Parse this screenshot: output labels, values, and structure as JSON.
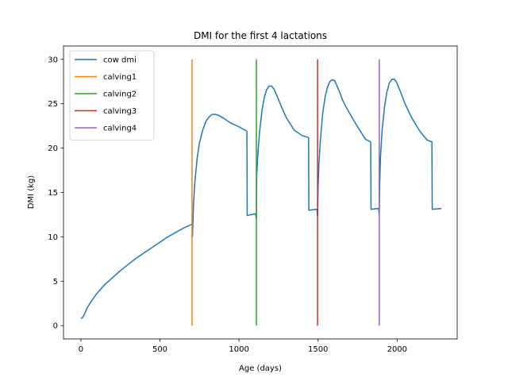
{
  "chart_data": {
    "type": "line",
    "title": "DMI for the first 4 lactations",
    "xlabel": "Age (days)",
    "ylabel": "DMI (kg)",
    "xlim": [
      -110,
      2380
    ],
    "ylim": [
      -1.5,
      31.5
    ],
    "xticks": [
      0,
      500,
      1000,
      1500,
      2000
    ],
    "yticks": [
      0,
      5,
      10,
      15,
      20,
      25,
      30
    ],
    "legend_position": "top-left",
    "grid": false,
    "series": [
      {
        "name": "cow dmi",
        "color": "#1f77b4",
        "x": [
          0,
          10,
          20,
          40,
          60,
          80,
          100,
          150,
          200,
          250,
          300,
          350,
          400,
          450,
          500,
          550,
          600,
          650,
          700,
          703,
          706,
          712,
          720,
          735,
          750,
          770,
          790,
          810,
          830,
          850,
          870,
          900,
          950,
          1000,
          1050,
          1052,
          1100,
          1105,
          1110,
          1112,
          1120,
          1130,
          1145,
          1160,
          1175,
          1190,
          1205,
          1220,
          1240,
          1270,
          1300,
          1350,
          1400,
          1440,
          1442,
          1490,
          1493,
          1497,
          1500,
          1505,
          1515,
          1530,
          1545,
          1560,
          1575,
          1590,
          1605,
          1630,
          1660,
          1700,
          1750,
          1800,
          1833,
          1835,
          1880,
          1883,
          1887,
          1890,
          1895,
          1905,
          1920,
          1935,
          1950,
          1965,
          1980,
          1995,
          2020,
          2050,
          2090,
          2140,
          2190,
          2220,
          2222,
          2280
        ],
        "y": [
          0.8,
          0.9,
          1.2,
          2.0,
          2.6,
          3.1,
          3.6,
          4.6,
          5.4,
          6.2,
          6.9,
          7.6,
          8.2,
          8.8,
          9.4,
          10.0,
          10.5,
          11.0,
          11.4,
          11.5,
          10.0,
          13.5,
          16.0,
          18.8,
          20.6,
          22.0,
          23.0,
          23.5,
          23.8,
          23.8,
          23.7,
          23.4,
          22.8,
          22.4,
          21.9,
          12.4,
          12.6,
          12.6,
          12.0,
          17.0,
          19.5,
          21.8,
          24.2,
          25.7,
          26.6,
          27.0,
          27.0,
          26.7,
          25.9,
          24.6,
          23.4,
          22.0,
          21.4,
          21.2,
          13.0,
          13.1,
          13.1,
          12.3,
          15.5,
          18.0,
          21.0,
          24.0,
          25.8,
          26.9,
          27.5,
          27.7,
          27.6,
          26.6,
          25.2,
          23.9,
          22.4,
          21.0,
          20.7,
          13.1,
          13.2,
          13.2,
          12.4,
          16.0,
          19.0,
          22.0,
          24.6,
          26.3,
          27.3,
          27.7,
          27.8,
          27.5,
          26.4,
          25.0,
          23.5,
          22.0,
          20.9,
          20.7,
          13.1,
          13.2
        ]
      },
      {
        "name": "calving1",
        "color": "#ff7f0e",
        "x": [
          703,
          703
        ],
        "y": [
          0,
          30
        ]
      },
      {
        "name": "calving2",
        "color": "#2ca02c",
        "x": [
          1110,
          1110
        ],
        "y": [
          0,
          30
        ]
      },
      {
        "name": "calving3",
        "color": "#d62728",
        "x": [
          1497,
          1497
        ],
        "y": [
          0,
          30
        ]
      },
      {
        "name": "calving4",
        "color": "#9467bd",
        "x": [
          1887,
          1887
        ],
        "y": [
          0,
          30
        ]
      }
    ]
  }
}
